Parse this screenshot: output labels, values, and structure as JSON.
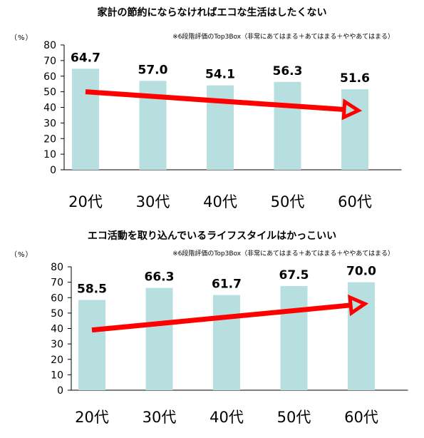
{
  "chart_data": [
    {
      "type": "bar",
      "title": "家計の節約にならなければエコな生活はしたくない",
      "unit": "（%）",
      "note": "※6段階評価のTop3Box（非常にあてはまる＋あてはまる＋ややあてはまる）",
      "categories": [
        "20代",
        "30代",
        "40代",
        "50代",
        "60代"
      ],
      "values": [
        64.7,
        57.0,
        54.1,
        56.3,
        51.6
      ],
      "value_labels": [
        "64.7",
        "57.0",
        "54.1",
        "56.3",
        "51.6"
      ],
      "ylim": [
        0,
        80
      ],
      "yticks": [
        "0",
        "10",
        "20",
        "30",
        "40",
        "50",
        "60",
        "70",
        "80"
      ],
      "trend_arrow": {
        "direction": "down",
        "from_value": 50,
        "to_value": 38
      },
      "grid": false
    },
    {
      "type": "bar",
      "title": "エコ活動を取り込んでいるライフスタイルはかっこいい",
      "unit": "（%）",
      "note": "※6段階評価のTop3Box（非常にあてはまる＋あてはまる＋ややあてはまる）",
      "categories": [
        "20代",
        "30代",
        "40代",
        "50代",
        "60代"
      ],
      "values": [
        58.5,
        66.3,
        61.7,
        67.5,
        70.0
      ],
      "value_labels": [
        "58.5",
        "66.3",
        "61.7",
        "67.5",
        "70.0"
      ],
      "ylim": [
        0,
        80
      ],
      "yticks": [
        "0",
        "10",
        "20",
        "30",
        "40",
        "50",
        "60",
        "70",
        "80"
      ],
      "trend_arrow": {
        "direction": "up",
        "from_value": 39,
        "to_value": 56
      },
      "grid": false
    }
  ],
  "colors": {
    "bar": "#b8dfe0",
    "arrow": "#ff0000",
    "axis": "#000000"
  }
}
